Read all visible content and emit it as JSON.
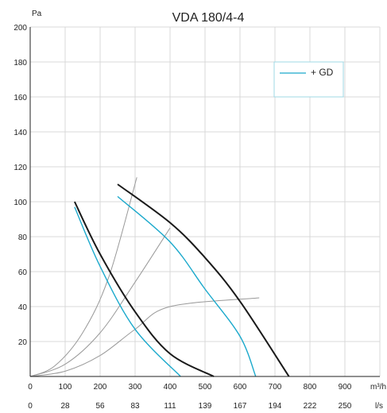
{
  "chart_data": {
    "type": "line",
    "title": "VDA 180/4-4",
    "ylabel": "Pa",
    "xlabel": "m³/h",
    "x2label": "l/s",
    "xlim": [
      0,
      1000
    ],
    "ylim": [
      0,
      200
    ],
    "x_ticks": [
      "0",
      "100",
      "200",
      "300",
      "400",
      "500",
      "600",
      "700",
      "800",
      "900"
    ],
    "x2_ticks": [
      "0",
      "28",
      "56",
      "83",
      "111",
      "139",
      "167",
      "194",
      "222",
      "250"
    ],
    "y_ticks": [
      "20",
      "40",
      "60",
      "80",
      "100",
      "120",
      "140",
      "160",
      "180",
      "200"
    ],
    "grid": true,
    "legend_position": "top-right",
    "series": [
      {
        "name": "",
        "color": "#1a1a1a",
        "points": [
          [
            127,
            100
          ],
          [
            200,
            70
          ],
          [
            300,
            37
          ],
          [
            400,
            13
          ],
          [
            525,
            0
          ]
        ]
      },
      {
        "name": "",
        "color": "#1a1a1a",
        "points": [
          [
            250,
            110
          ],
          [
            400,
            88
          ],
          [
            500,
            68
          ],
          [
            600,
            43
          ],
          [
            740,
            0
          ]
        ]
      },
      {
        "name": "+ GD",
        "color": "#1ba9cc",
        "points": [
          [
            127,
            97
          ],
          [
            200,
            63
          ],
          [
            300,
            27
          ],
          [
            430,
            0
          ]
        ]
      },
      {
        "name": "+ GD",
        "color": "#1ba9cc",
        "points": [
          [
            250,
            103
          ],
          [
            400,
            77
          ],
          [
            500,
            50
          ],
          [
            600,
            23
          ],
          [
            645,
            0
          ]
        ]
      }
    ],
    "system_curves": [
      {
        "color": "#999999",
        "points": [
          [
            0,
            0
          ],
          [
            70,
            6
          ],
          [
            150,
            25
          ],
          [
            225,
            57
          ],
          [
            305,
            114
          ]
        ]
      },
      {
        "color": "#999999",
        "points": [
          [
            0,
            0
          ],
          [
            100,
            7
          ],
          [
            200,
            25
          ],
          [
            300,
            54
          ],
          [
            400,
            85
          ]
        ]
      },
      {
        "color": "#999999",
        "points": [
          [
            0,
            0
          ],
          [
            100,
            3
          ],
          [
            200,
            12
          ],
          [
            300,
            27
          ],
          [
            400,
            40
          ],
          [
            655,
            45
          ]
        ]
      }
    ],
    "legend": {
      "label": "+ GD",
      "color": "#1ba9cc"
    }
  }
}
